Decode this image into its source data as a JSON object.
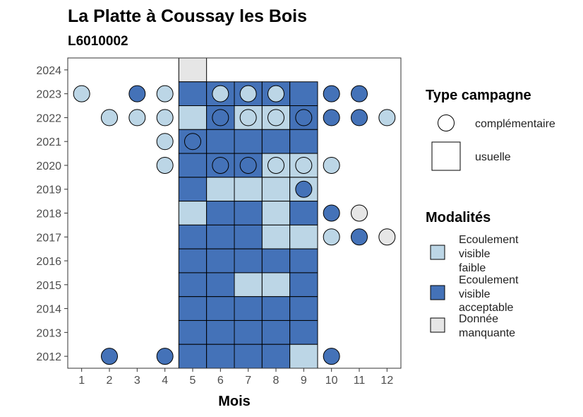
{
  "chart_data": {
    "type": "heatmap",
    "title": "La Platte à Coussay les Bois",
    "subtitle": "L6010002",
    "xlabel": "Mois",
    "ylabel": "",
    "x_ticks": [
      1,
      2,
      3,
      4,
      5,
      6,
      7,
      8,
      9,
      10,
      11,
      12
    ],
    "y_ticks": [
      2012,
      2013,
      2014,
      2015,
      2016,
      2017,
      2018,
      2019,
      2020,
      2021,
      2022,
      2023,
      2024
    ],
    "xlim": [
      0.5,
      12.5
    ],
    "ylim": [
      2011.5,
      2024.5
    ],
    "grid": false,
    "legend_position": "right",
    "colors": {
      "faible": "#bcd6e6",
      "acceptable": "#4472b8",
      "manquante": "#e6e6e6",
      "outline": "#000000"
    },
    "legend": {
      "type_title": "Type campagne",
      "type_items": [
        {
          "shape": "circle",
          "label": "complémentaire"
        },
        {
          "shape": "square",
          "label": "usuelle"
        }
      ],
      "mod_title": "Modalités",
      "mod_items": [
        {
          "key": "faible",
          "lines": [
            "Ecoulement",
            "visible",
            "faible"
          ]
        },
        {
          "key": "acceptable",
          "lines": [
            "Ecoulement",
            "visible",
            "acceptable"
          ]
        },
        {
          "key": "manquante",
          "lines": [
            "Donnée",
            "manquante"
          ]
        }
      ]
    },
    "usuelle": [
      {
        "year": 2024,
        "month": 5,
        "v": "manquante"
      },
      {
        "year": 2023,
        "month": 5,
        "v": "acceptable"
      },
      {
        "year": 2023,
        "month": 6,
        "v": "acceptable"
      },
      {
        "year": 2023,
        "month": 7,
        "v": "acceptable"
      },
      {
        "year": 2023,
        "month": 8,
        "v": "acceptable"
      },
      {
        "year": 2023,
        "month": 9,
        "v": "acceptable"
      },
      {
        "year": 2022,
        "month": 5,
        "v": "faible"
      },
      {
        "year": 2022,
        "month": 6,
        "v": "acceptable"
      },
      {
        "year": 2022,
        "month": 7,
        "v": "faible"
      },
      {
        "year": 2022,
        "month": 8,
        "v": "faible"
      },
      {
        "year": 2022,
        "month": 9,
        "v": "acceptable"
      },
      {
        "year": 2021,
        "month": 5,
        "v": "acceptable"
      },
      {
        "year": 2021,
        "month": 6,
        "v": "acceptable"
      },
      {
        "year": 2021,
        "month": 7,
        "v": "acceptable"
      },
      {
        "year": 2021,
        "month": 8,
        "v": "acceptable"
      },
      {
        "year": 2021,
        "month": 9,
        "v": "acceptable"
      },
      {
        "year": 2020,
        "month": 5,
        "v": "acceptable"
      },
      {
        "year": 2020,
        "month": 6,
        "v": "acceptable"
      },
      {
        "year": 2020,
        "month": 7,
        "v": "acceptable"
      },
      {
        "year": 2020,
        "month": 8,
        "v": "faible"
      },
      {
        "year": 2020,
        "month": 9,
        "v": "faible"
      },
      {
        "year": 2019,
        "month": 5,
        "v": "acceptable"
      },
      {
        "year": 2019,
        "month": 6,
        "v": "faible"
      },
      {
        "year": 2019,
        "month": 7,
        "v": "faible"
      },
      {
        "year": 2019,
        "month": 8,
        "v": "faible"
      },
      {
        "year": 2019,
        "month": 9,
        "v": "faible"
      },
      {
        "year": 2018,
        "month": 5,
        "v": "faible"
      },
      {
        "year": 2018,
        "month": 6,
        "v": "acceptable"
      },
      {
        "year": 2018,
        "month": 7,
        "v": "acceptable"
      },
      {
        "year": 2018,
        "month": 8,
        "v": "faible"
      },
      {
        "year": 2018,
        "month": 9,
        "v": "acceptable"
      },
      {
        "year": 2017,
        "month": 5,
        "v": "acceptable"
      },
      {
        "year": 2017,
        "month": 6,
        "v": "acceptable"
      },
      {
        "year": 2017,
        "month": 7,
        "v": "acceptable"
      },
      {
        "year": 2017,
        "month": 8,
        "v": "faible"
      },
      {
        "year": 2017,
        "month": 9,
        "v": "faible"
      },
      {
        "year": 2016,
        "month": 5,
        "v": "acceptable"
      },
      {
        "year": 2016,
        "month": 6,
        "v": "acceptable"
      },
      {
        "year": 2016,
        "month": 7,
        "v": "acceptable"
      },
      {
        "year": 2016,
        "month": 8,
        "v": "acceptable"
      },
      {
        "year": 2016,
        "month": 9,
        "v": "acceptable"
      },
      {
        "year": 2015,
        "month": 5,
        "v": "acceptable"
      },
      {
        "year": 2015,
        "month": 6,
        "v": "acceptable"
      },
      {
        "year": 2015,
        "month": 7,
        "v": "faible"
      },
      {
        "year": 2015,
        "month": 8,
        "v": "faible"
      },
      {
        "year": 2015,
        "month": 9,
        "v": "acceptable"
      },
      {
        "year": 2014,
        "month": 5,
        "v": "acceptable"
      },
      {
        "year": 2014,
        "month": 6,
        "v": "acceptable"
      },
      {
        "year": 2014,
        "month": 7,
        "v": "acceptable"
      },
      {
        "year": 2014,
        "month": 8,
        "v": "acceptable"
      },
      {
        "year": 2014,
        "month": 9,
        "v": "acceptable"
      },
      {
        "year": 2013,
        "month": 5,
        "v": "acceptable"
      },
      {
        "year": 2013,
        "month": 6,
        "v": "acceptable"
      },
      {
        "year": 2013,
        "month": 7,
        "v": "acceptable"
      },
      {
        "year": 2013,
        "month": 8,
        "v": "acceptable"
      },
      {
        "year": 2013,
        "month": 9,
        "v": "acceptable"
      },
      {
        "year": 2012,
        "month": 5,
        "v": "acceptable"
      },
      {
        "year": 2012,
        "month": 6,
        "v": "acceptable"
      },
      {
        "year": 2012,
        "month": 7,
        "v": "acceptable"
      },
      {
        "year": 2012,
        "month": 8,
        "v": "acceptable"
      },
      {
        "year": 2012,
        "month": 9,
        "v": "faible"
      }
    ],
    "complementaire": [
      {
        "year": 2023,
        "month": 1,
        "v": "faible"
      },
      {
        "year": 2023,
        "month": 3,
        "v": "acceptable"
      },
      {
        "year": 2023,
        "month": 4,
        "v": "faible"
      },
      {
        "year": 2023,
        "month": 6,
        "v": "faible"
      },
      {
        "year": 2023,
        "month": 7,
        "v": "faible"
      },
      {
        "year": 2023,
        "month": 8,
        "v": "faible"
      },
      {
        "year": 2023,
        "month": 10,
        "v": "acceptable"
      },
      {
        "year": 2023,
        "month": 11,
        "v": "acceptable"
      },
      {
        "year": 2022,
        "month": 2,
        "v": "faible"
      },
      {
        "year": 2022,
        "month": 3,
        "v": "faible"
      },
      {
        "year": 2022,
        "month": 4,
        "v": "faible"
      },
      {
        "year": 2022,
        "month": 6,
        "v": "acceptable"
      },
      {
        "year": 2022,
        "month": 7,
        "v": "faible"
      },
      {
        "year": 2022,
        "month": 8,
        "v": "faible"
      },
      {
        "year": 2022,
        "month": 9,
        "v": "acceptable"
      },
      {
        "year": 2022,
        "month": 10,
        "v": "acceptable"
      },
      {
        "year": 2022,
        "month": 11,
        "v": "acceptable"
      },
      {
        "year": 2022,
        "month": 12,
        "v": "faible"
      },
      {
        "year": 2021,
        "month": 4,
        "v": "faible"
      },
      {
        "year": 2021,
        "month": 5,
        "v": "acceptable"
      },
      {
        "year": 2020,
        "month": 4,
        "v": "faible"
      },
      {
        "year": 2020,
        "month": 6,
        "v": "acceptable"
      },
      {
        "year": 2020,
        "month": 7,
        "v": "acceptable"
      },
      {
        "year": 2020,
        "month": 8,
        "v": "faible"
      },
      {
        "year": 2020,
        "month": 9,
        "v": "faible"
      },
      {
        "year": 2020,
        "month": 10,
        "v": "faible"
      },
      {
        "year": 2019,
        "month": 9,
        "v": "acceptable"
      },
      {
        "year": 2018,
        "month": 10,
        "v": "acceptable"
      },
      {
        "year": 2018,
        "month": 11,
        "v": "manquante"
      },
      {
        "year": 2017,
        "month": 10,
        "v": "faible"
      },
      {
        "year": 2017,
        "month": 11,
        "v": "acceptable"
      },
      {
        "year": 2017,
        "month": 12,
        "v": "manquante"
      },
      {
        "year": 2012,
        "month": 2,
        "v": "acceptable"
      },
      {
        "year": 2012,
        "month": 4,
        "v": "acceptable"
      },
      {
        "year": 2012,
        "month": 10,
        "v": "acceptable"
      }
    ]
  }
}
